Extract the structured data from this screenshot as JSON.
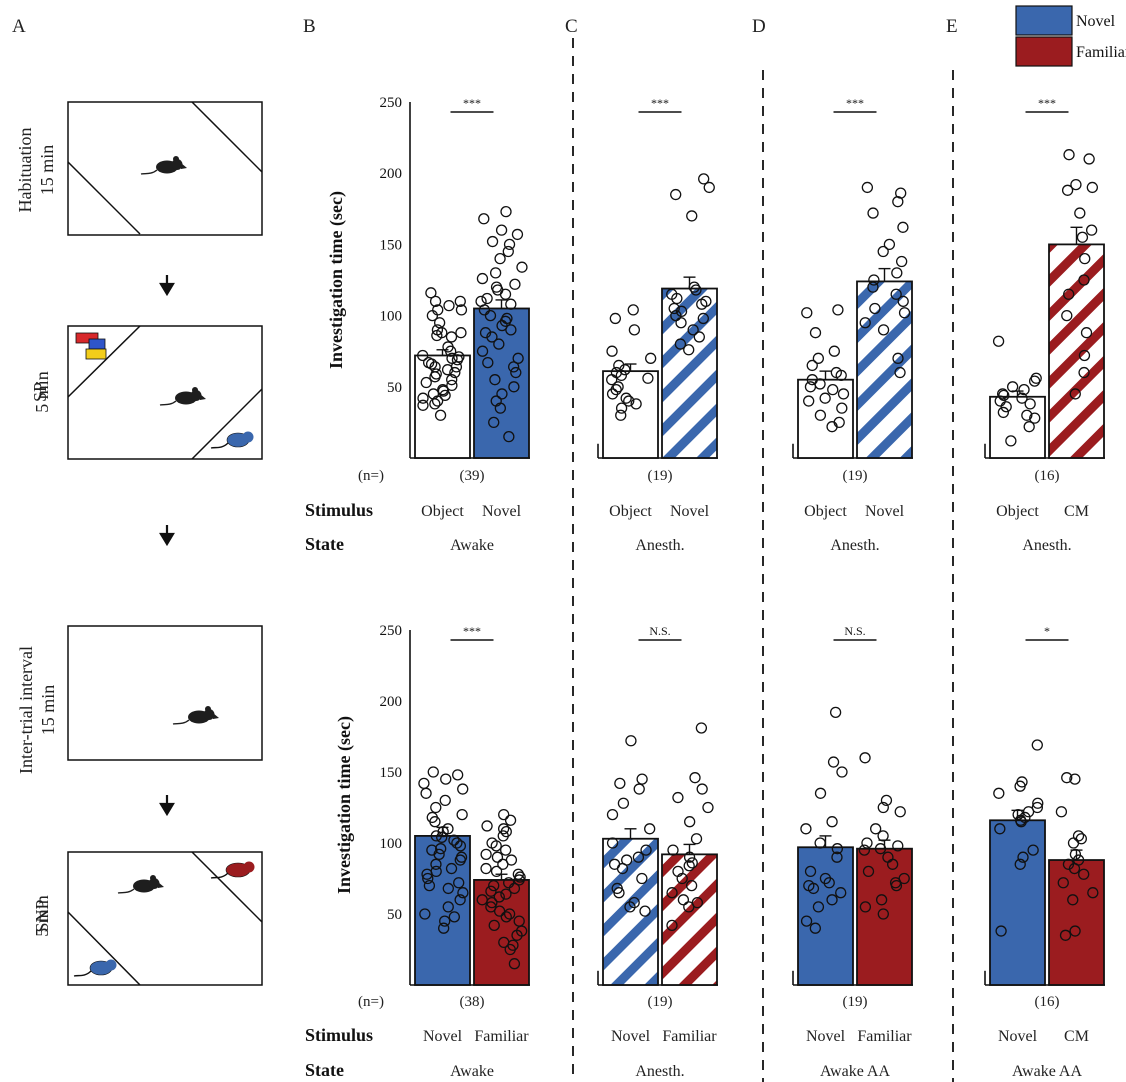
{
  "panel_letters": [
    "A",
    "B",
    "C",
    "D",
    "E"
  ],
  "legend": {
    "novel": {
      "label": "Novel",
      "color": "#3a67ad"
    },
    "familiar": {
      "label": "Familiar",
      "color": "#9b1c1f"
    }
  },
  "panel_a": {
    "stages": [
      {
        "line1": "Habituation",
        "line2": "15 min"
      },
      {
        "line1": "SP",
        "line2": "5 min"
      },
      {
        "line1": "Inter-trial interval",
        "line2": "15 min"
      },
      {
        "line1": "SNP",
        "line2": "5 min"
      }
    ]
  },
  "labels": {
    "ylabel": "Investigation time (sec)",
    "n_label": "(n=)",
    "stimulus_label": "Stimulus",
    "state_label": "State"
  },
  "chart_data": [
    {
      "type": "bar",
      "panel": "B",
      "row": "top",
      "categories": [
        "Object",
        "Novel"
      ],
      "values": [
        72,
        105
      ],
      "errors": [
        4,
        6
      ],
      "styles": [
        "white",
        "novel"
      ],
      "significance": "***",
      "n": "(39)",
      "state": "Awake",
      "ylim": [
        0,
        250
      ],
      "yticks": [
        50,
        100,
        150,
        200,
        250
      ],
      "ylabel": "Investigation time (sec)",
      "points": [
        [
          110,
          116,
          110,
          104,
          107,
          100,
          104,
          95,
          90,
          88,
          88,
          85,
          86,
          78,
          75,
          72,
          71,
          70,
          69,
          67,
          66,
          64,
          64,
          62,
          60,
          59,
          57,
          55,
          53,
          51,
          48,
          47,
          45,
          44,
          42,
          40,
          38,
          37,
          30
        ],
        [
          173,
          168,
          160,
          157,
          152,
          150,
          145,
          140,
          134,
          130,
          126,
          122,
          120,
          118,
          115,
          112,
          110,
          108,
          104,
          100,
          98,
          96,
          93,
          90,
          88,
          85,
          80,
          75,
          70,
          67,
          64,
          60,
          55,
          50,
          45,
          40,
          35,
          25,
          15
        ]
      ]
    },
    {
      "type": "bar",
      "panel": "C",
      "row": "top",
      "categories": [
        "Object",
        "Novel"
      ],
      "values": [
        61,
        119
      ],
      "errors": [
        5,
        8
      ],
      "styles": [
        "white",
        "novel-hatch"
      ],
      "significance": "***",
      "n": "(19)",
      "state": "Anesth.",
      "points": [
        [
          104,
          98,
          90,
          75,
          70,
          65,
          62,
          60,
          58,
          56,
          55,
          50,
          48,
          45,
          42,
          40,
          38,
          35,
          30
        ],
        [
          196,
          190,
          185,
          170,
          120,
          118,
          115,
          112,
          110,
          108,
          105,
          103,
          100,
          98,
          95,
          90,
          85,
          80,
          76
        ]
      ]
    },
    {
      "type": "bar",
      "panel": "D",
      "row": "top",
      "categories": [
        "Object",
        "Novel"
      ],
      "values": [
        55,
        124
      ],
      "errors": [
        6,
        9
      ],
      "styles": [
        "white",
        "novel-hatch"
      ],
      "significance": "***",
      "n": "(19)",
      "state": "Anesth.",
      "points": [
        [
          104,
          102,
          88,
          75,
          70,
          65,
          60,
          58,
          55,
          52,
          50,
          48,
          45,
          42,
          40,
          35,
          30,
          25,
          22
        ],
        [
          190,
          186,
          180,
          172,
          162,
          150,
          145,
          138,
          130,
          125,
          120,
          115,
          110,
          105,
          102,
          95,
          90,
          70,
          60
        ]
      ]
    },
    {
      "type": "bar",
      "panel": "E",
      "row": "top",
      "categories": [
        "Object",
        "CM"
      ],
      "values": [
        43,
        150
      ],
      "errors": [
        4,
        12
      ],
      "styles": [
        "white",
        "familiar-hatch"
      ],
      "significance": "***",
      "n": "(16)",
      "state": "Anesth.",
      "points": [
        [
          82,
          56,
          54,
          50,
          48,
          45,
          44,
          42,
          40,
          38,
          36,
          32,
          30,
          28,
          22,
          12
        ],
        [
          213,
          210,
          192,
          190,
          188,
          172,
          160,
          155,
          140,
          125,
          115,
          100,
          88,
          72,
          60,
          45
        ]
      ]
    },
    {
      "type": "bar",
      "panel": "B",
      "row": "bottom",
      "categories": [
        "Novel",
        "Familiar"
      ],
      "values": [
        105,
        74
      ],
      "errors": [
        6,
        4
      ],
      "styles": [
        "novel",
        "familiar"
      ],
      "significance": "***",
      "n": "(38)",
      "state": "Awake",
      "points": [
        [
          150,
          148,
          145,
          142,
          138,
          135,
          130,
          125,
          120,
          118,
          115,
          110,
          108,
          105,
          104,
          102,
          100,
          98,
          96,
          95,
          92,
          90,
          88,
          85,
          82,
          80,
          78,
          75,
          72,
          70,
          68,
          65,
          60,
          55,
          50,
          48,
          45,
          40
        ],
        [
          120,
          116,
          112,
          110,
          108,
          105,
          100,
          98,
          95,
          92,
          90,
          88,
          85,
          82,
          80,
          78,
          76,
          74,
          72,
          70,
          68,
          66,
          64,
          62,
          60,
          58,
          55,
          52,
          50,
          48,
          45,
          42,
          38,
          35,
          30,
          28,
          25,
          15
        ]
      ]
    },
    {
      "type": "bar",
      "panel": "C",
      "row": "bottom",
      "categories": [
        "Novel",
        "Familiar"
      ],
      "values": [
        103,
        92
      ],
      "errors": [
        7,
        7
      ],
      "styles": [
        "novel-hatch",
        "familiar-hatch"
      ],
      "significance": "N.S.",
      "n": "(19)",
      "state": "Anesth.",
      "points": [
        [
          172,
          145,
          142,
          138,
          128,
          120,
          110,
          100,
          95,
          90,
          88,
          85,
          82,
          75,
          68,
          65,
          58,
          55,
          52
        ],
        [
          181,
          146,
          138,
          132,
          125,
          115,
          103,
          95,
          90,
          86,
          84,
          80,
          75,
          70,
          65,
          60,
          58,
          55,
          42
        ]
      ]
    },
    {
      "type": "bar",
      "panel": "D",
      "row": "bottom",
      "categories": [
        "Novel",
        "Familiar"
      ],
      "values": [
        97,
        96
      ],
      "errors": [
        8,
        6
      ],
      "styles": [
        "novel",
        "familiar"
      ],
      "significance": "N.S.",
      "n": "(19)",
      "state": "Awake AA",
      "points": [
        [
          192,
          157,
          150,
          135,
          115,
          110,
          100,
          96,
          90,
          80,
          75,
          72,
          70,
          68,
          65,
          60,
          55,
          45,
          40
        ],
        [
          160,
          130,
          125,
          122,
          110,
          105,
          100,
          98,
          96,
          95,
          90,
          85,
          80,
          75,
          72,
          70,
          60,
          55,
          50
        ]
      ]
    },
    {
      "type": "bar",
      "panel": "E",
      "row": "bottom",
      "categories": [
        "Novel",
        "CM"
      ],
      "values": [
        116,
        88
      ],
      "errors": [
        7,
        7
      ],
      "styles": [
        "novel",
        "familiar"
      ],
      "significance": "*",
      "n": "(16)",
      "state": "Awake AA",
      "points": [
        [
          169,
          143,
          140,
          135,
          128,
          125,
          122,
          120,
          118,
          116,
          115,
          110,
          95,
          90,
          85,
          38
        ],
        [
          146,
          145,
          122,
          105,
          103,
          100,
          92,
          88,
          85,
          82,
          78,
          72,
          65,
          60,
          38,
          35
        ]
      ]
    }
  ]
}
